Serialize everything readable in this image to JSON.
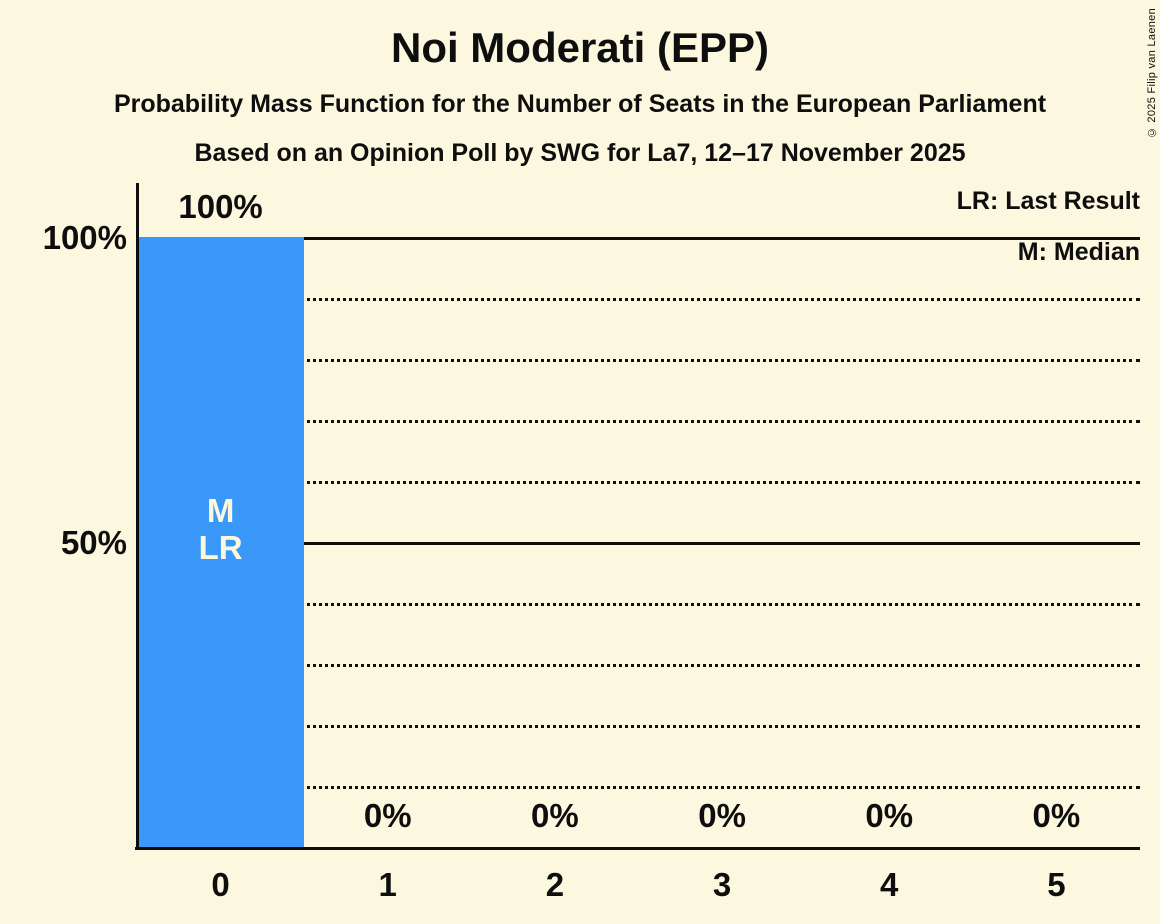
{
  "title": "Noi Moderati (EPP)",
  "subtitle": "Probability Mass Function for the Number of Seats in the European Parliament",
  "subsubtitle": "Based on an Opinion Poll by SWG for La7, 12–17 November 2025",
  "copyright": "© 2025 Filip van Laenen",
  "legend": {
    "lr": "LR: Last Result",
    "m": "M: Median"
  },
  "chart_data": {
    "type": "bar",
    "title": "Noi Moderati (EPP)",
    "categories": [
      "0",
      "1",
      "2",
      "3",
      "4",
      "5"
    ],
    "values": [
      100,
      0,
      0,
      0,
      0,
      0
    ],
    "value_labels": [
      "100%",
      "0%",
      "0%",
      "0%",
      "0%",
      "0%"
    ],
    "ylim": [
      0,
      100
    ],
    "ytick_interval": 10,
    "yticks": [
      {
        "value": 100,
        "label": "100%"
      },
      {
        "value": 50,
        "label": "50%"
      }
    ],
    "solid_gridlines": [
      100,
      50
    ],
    "dotted_gridlines": [
      90,
      80,
      70,
      60,
      40,
      30,
      20,
      10
    ],
    "median_category": "0",
    "last_result_category": "0",
    "median_marker": "M",
    "last_result_marker": "LR",
    "legend_position": "top-right",
    "grid": "horizontal",
    "colors": {
      "bar": "#3A98F9",
      "background": "#FCF8DF",
      "text": "#0E0E0E",
      "bar_text": "#FCF8DF"
    }
  }
}
